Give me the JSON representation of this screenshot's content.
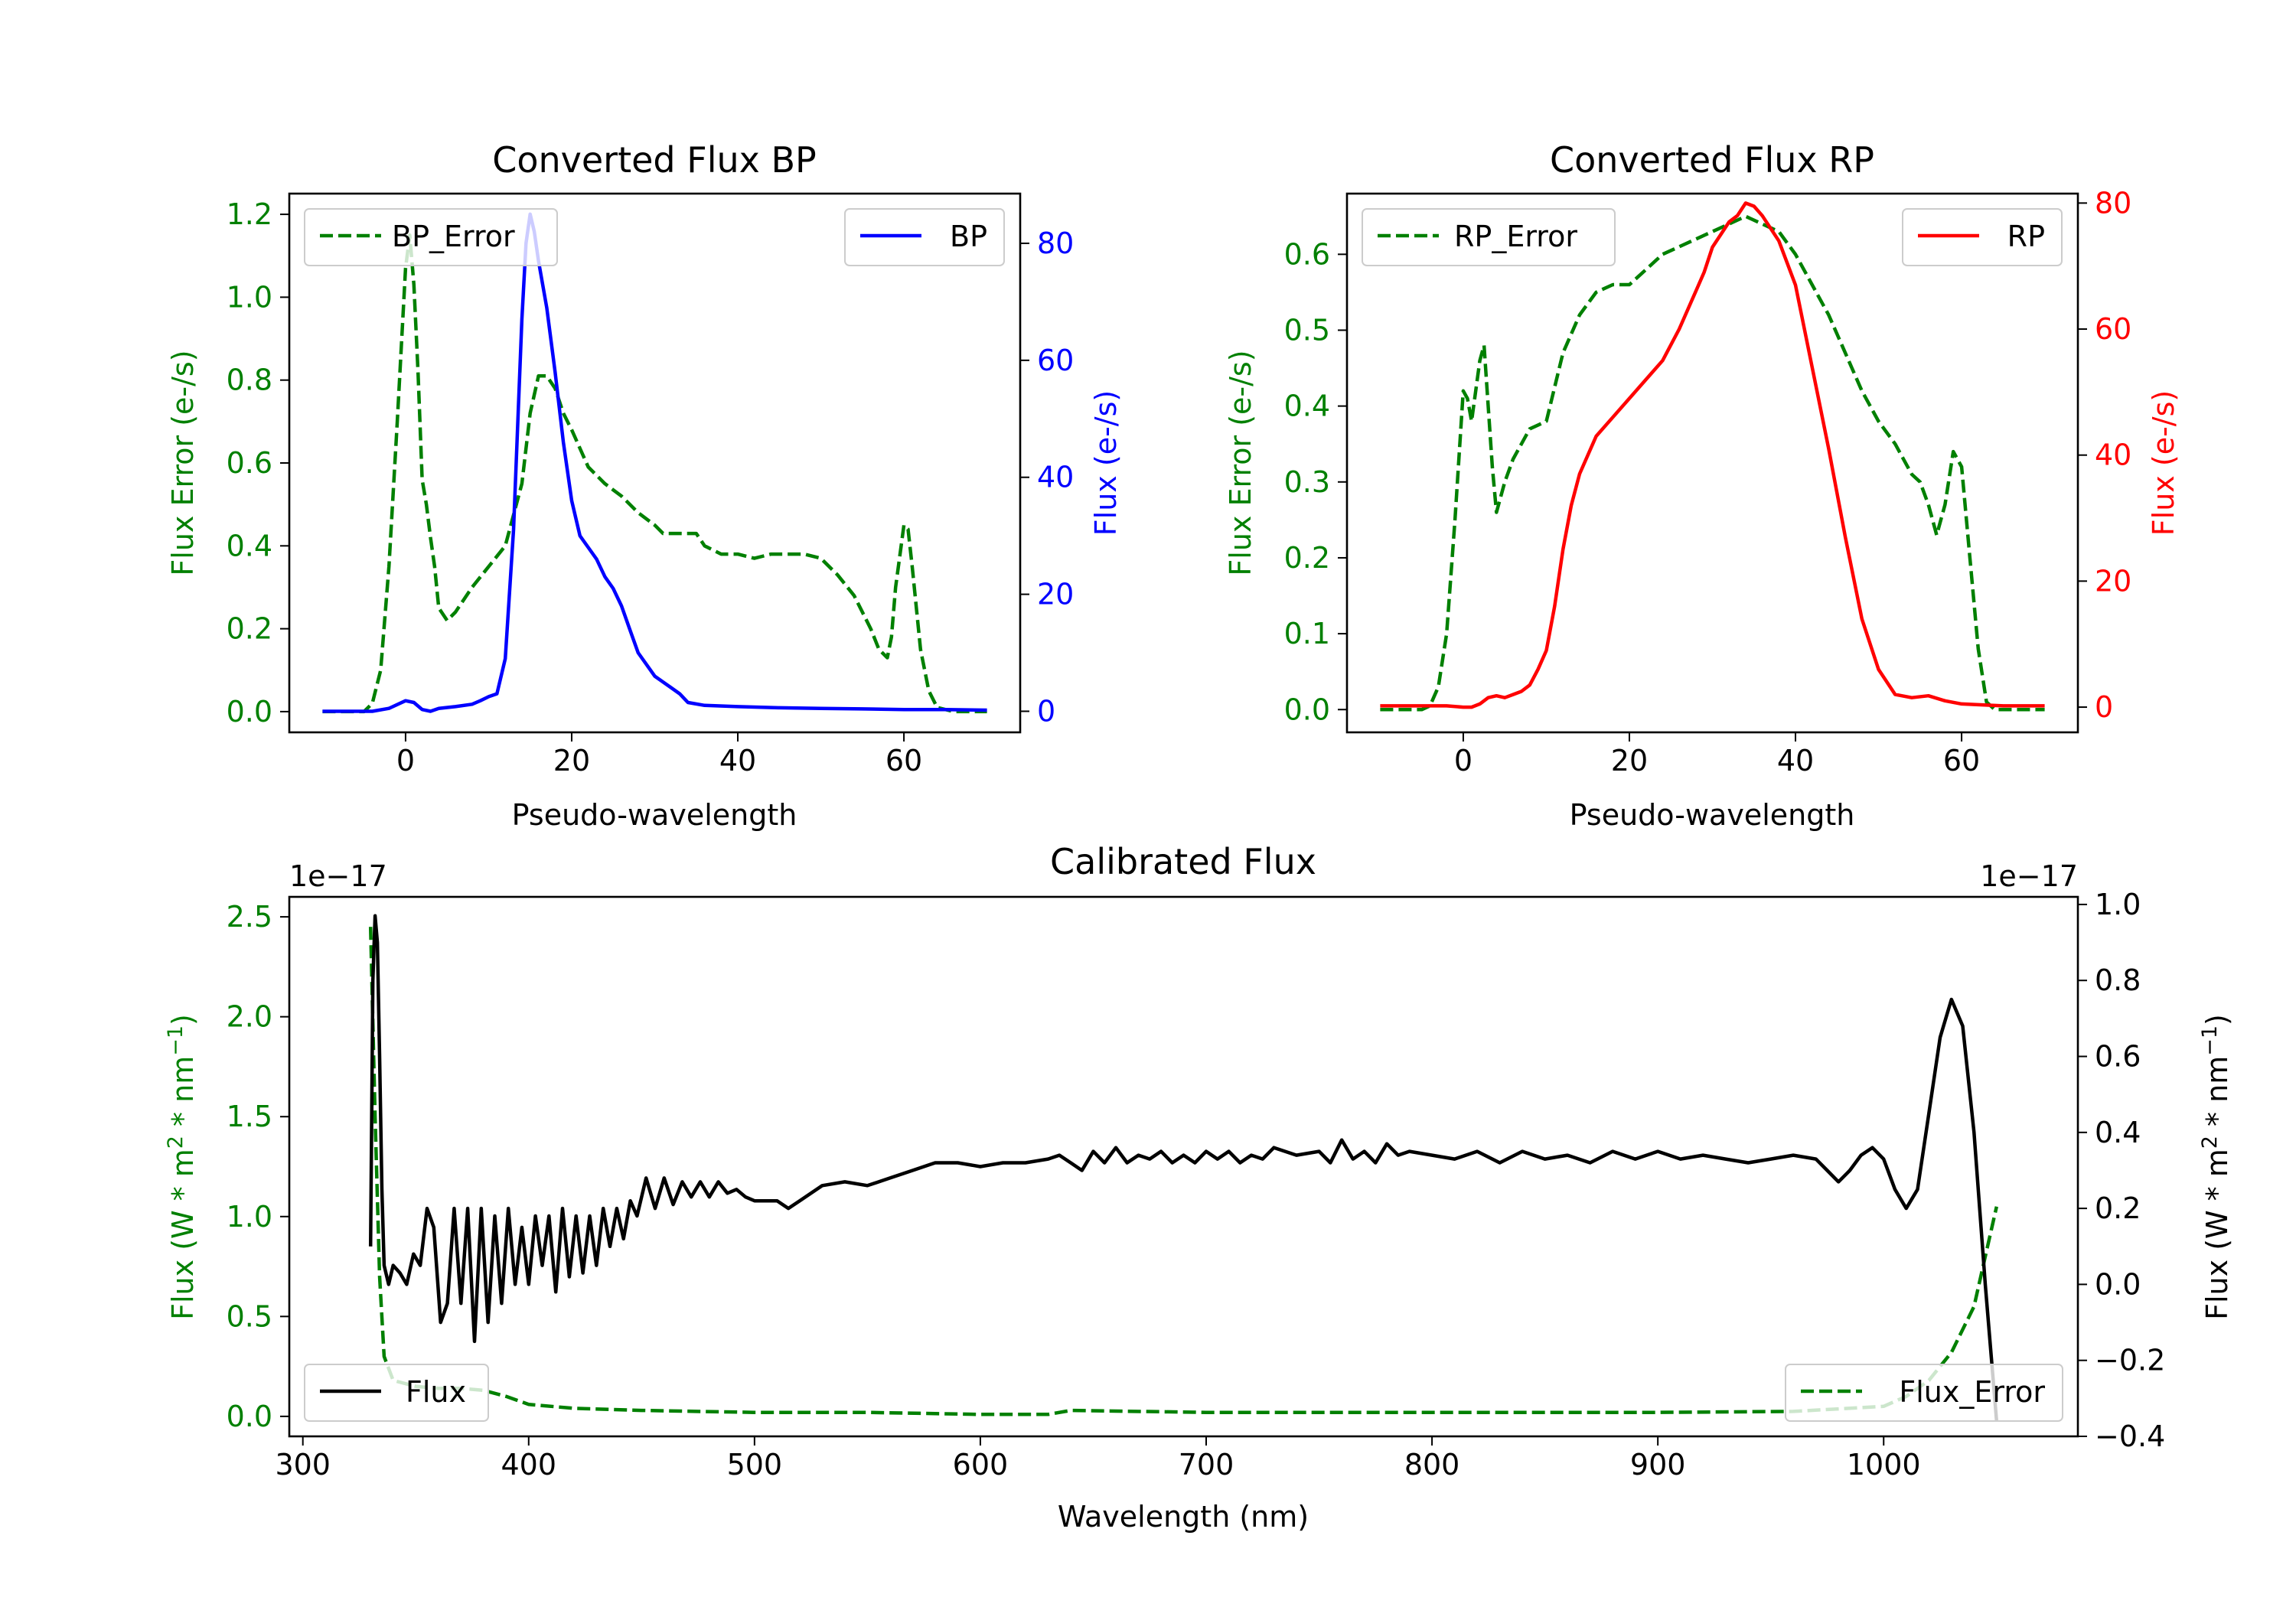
{
  "chart_data": [
    {
      "type": "line",
      "id": "bp",
      "title": "Converted Flux BP",
      "xlabel": "Pseudo-wavelength",
      "ylabel_left": "Flux Error (e-/s)",
      "ylabel_right": "Flux (e-/s)",
      "xlim": [
        -14,
        74
      ],
      "ylim_left": [
        -0.05,
        1.25
      ],
      "ylim_right": [
        -3.6,
        88.5
      ],
      "xticks": [
        0,
        20,
        40,
        60
      ],
      "yticks_left": [
        0.0,
        0.2,
        0.4,
        0.6,
        0.8,
        1.0,
        1.2
      ],
      "yticks_left_labels": [
        "0.0",
        "0.2",
        "0.4",
        "0.6",
        "0.8",
        "1.0",
        "1.2"
      ],
      "yticks_right": [
        0,
        20,
        40,
        60,
        80
      ],
      "yticks_right_labels": [
        "0",
        "20",
        "40",
        "60",
        "80"
      ],
      "left_color": "#008000",
      "right_color": "#0000ff",
      "series": [
        {
          "name": "BP_Error",
          "axis": "left",
          "style": "dashed",
          "color": "#008000",
          "legend": "upper left",
          "x": [
            -10,
            -5,
            -4,
            -3,
            -2,
            -1,
            0,
            0.5,
            1,
            1.5,
            2,
            2.5,
            3,
            3.5,
            4,
            5,
            6,
            8,
            10,
            12,
            14,
            15,
            16,
            17,
            18,
            19,
            20,
            22,
            24,
            26,
            28,
            30,
            31,
            32,
            33,
            34,
            35,
            36,
            38,
            40,
            42,
            44,
            46,
            48,
            50,
            52,
            54,
            56,
            57,
            58,
            58.5,
            59,
            60,
            60.5,
            61,
            62,
            63,
            64,
            66,
            70
          ],
          "y": [
            0,
            0,
            0.02,
            0.1,
            0.35,
            0.7,
            1.07,
            1.15,
            1.03,
            0.82,
            0.56,
            0.5,
            0.42,
            0.35,
            0.25,
            0.22,
            0.24,
            0.3,
            0.35,
            0.4,
            0.55,
            0.72,
            0.81,
            0.81,
            0.78,
            0.72,
            0.68,
            0.59,
            0.55,
            0.52,
            0.48,
            0.45,
            0.43,
            0.43,
            0.43,
            0.43,
            0.43,
            0.4,
            0.38,
            0.38,
            0.37,
            0.38,
            0.38,
            0.38,
            0.37,
            0.33,
            0.28,
            0.2,
            0.15,
            0.13,
            0.18,
            0.3,
            0.45,
            0.44,
            0.35,
            0.15,
            0.05,
            0.01,
            0,
            0
          ]
        },
        {
          "name": "BP",
          "axis": "right",
          "style": "solid",
          "color": "#0000ff",
          "legend": "upper right",
          "x": [
            -10,
            -6,
            -4,
            -2,
            0,
            1,
            2,
            3,
            4,
            6,
            8,
            9,
            10,
            11,
            12,
            13,
            14,
            14.5,
            15,
            15.5,
            16,
            16.5,
            17,
            18,
            19,
            20,
            21,
            22,
            23,
            24,
            25,
            26,
            27,
            28,
            30,
            32,
            33,
            34,
            36,
            40,
            45,
            50,
            55,
            60,
            65,
            70
          ],
          "y": [
            0,
            0,
            0,
            0.5,
            1.8,
            1.5,
            0.3,
            0,
            0.5,
            0.8,
            1.2,
            1.8,
            2.5,
            3,
            9,
            31,
            67,
            80,
            85,
            82,
            77,
            73,
            69,
            58,
            46,
            36,
            30,
            28,
            26,
            23,
            21,
            18,
            14,
            10,
            6,
            4,
            3,
            1.5,
            1,
            0.8,
            0.6,
            0.5,
            0.4,
            0.3,
            0.3,
            0.2
          ]
        }
      ]
    },
    {
      "type": "line",
      "id": "rp",
      "title": "Converted Flux RP",
      "xlabel": "Pseudo-wavelength",
      "ylabel_left": "Flux Error (e-/s)",
      "ylabel_right": "Flux (e-/s)",
      "xlim": [
        -14,
        74
      ],
      "ylim_left": [
        -0.03,
        0.68
      ],
      "ylim_right": [
        -4.0,
        81.5
      ],
      "xticks": [
        0,
        20,
        40,
        60
      ],
      "yticks_left": [
        0.0,
        0.1,
        0.2,
        0.3,
        0.4,
        0.5,
        0.6
      ],
      "yticks_left_labels": [
        "0.0",
        "0.1",
        "0.2",
        "0.3",
        "0.4",
        "0.5",
        "0.6"
      ],
      "yticks_right": [
        0,
        20,
        40,
        60,
        80
      ],
      "yticks_right_labels": [
        "0",
        "20",
        "40",
        "60",
        "80"
      ],
      "left_color": "#008000",
      "right_color": "#ff0000",
      "series": [
        {
          "name": "RP_Error",
          "axis": "left",
          "style": "dashed",
          "color": "#008000",
          "legend": "upper left",
          "x": [
            -10,
            -5,
            -4,
            -3,
            -2,
            -1,
            0,
            0.5,
            1,
            1.5,
            2,
            2.5,
            3,
            3.5,
            4,
            5,
            6,
            8,
            10,
            12,
            14,
            16,
            18,
            20,
            22,
            24,
            26,
            28,
            30,
            32,
            34,
            36,
            38,
            40,
            42,
            44,
            46,
            48,
            50,
            52,
            54,
            55,
            56,
            57,
            58,
            59,
            60,
            61,
            62,
            63,
            64,
            66,
            70
          ],
          "y": [
            0,
            0,
            0.005,
            0.03,
            0.1,
            0.25,
            0.42,
            0.41,
            0.38,
            0.42,
            0.46,
            0.48,
            0.4,
            0.32,
            0.26,
            0.3,
            0.33,
            0.37,
            0.38,
            0.47,
            0.52,
            0.55,
            0.56,
            0.56,
            0.58,
            0.6,
            0.61,
            0.62,
            0.63,
            0.64,
            0.65,
            0.64,
            0.63,
            0.6,
            0.56,
            0.52,
            0.47,
            0.42,
            0.38,
            0.35,
            0.31,
            0.3,
            0.27,
            0.23,
            0.27,
            0.34,
            0.32,
            0.2,
            0.08,
            0.01,
            0,
            0,
            0
          ]
        },
        {
          "name": "RP",
          "axis": "right",
          "style": "solid",
          "color": "#ff0000",
          "legend": "upper right",
          "x": [
            -10,
            -6,
            -2,
            0,
            1,
            2,
            3,
            4,
            5,
            6,
            7,
            8,
            9,
            10,
            11,
            12,
            13,
            14,
            16,
            18,
            20,
            22,
            24,
            26,
            28,
            29,
            30,
            31,
            32,
            33,
            34,
            35,
            36,
            38,
            40,
            42,
            44,
            46,
            48,
            50,
            52,
            54,
            56,
            58,
            60,
            65,
            70
          ],
          "y": [
            0.2,
            0.2,
            0.2,
            0,
            0,
            0.5,
            1.5,
            1.8,
            1.5,
            2,
            2.5,
            3.5,
            6,
            9,
            16,
            25,
            32,
            37,
            43,
            46,
            49,
            52,
            55,
            60,
            66,
            69,
            73,
            75,
            77,
            78,
            80,
            79.5,
            78,
            74,
            67,
            54,
            41,
            27,
            14,
            6,
            2,
            1.5,
            1.8,
            1.0,
            0.5,
            0.2,
            0.2
          ]
        }
      ]
    },
    {
      "type": "line",
      "id": "calibrated",
      "title": "Calibrated Flux",
      "xlabel": "Wavelength (nm)",
      "ylabel_left": "Flux (W * m",
      "ylabel_right": "Flux (W * m",
      "ylabel_unit_mid": " * nm",
      "ylabel_sup_left": "2",
      "ylabel_sup_right": "−1",
      "offset_left": "1e−17",
      "offset_right": "1e−17",
      "xlim": [
        294,
        1086
      ],
      "ylim_left": [
        -0.1,
        2.6
      ],
      "ylim_right": [
        -0.4,
        1.02
      ],
      "xticks": [
        300,
        400,
        500,
        600,
        700,
        800,
        900,
        1000
      ],
      "yticks_left": [
        0.0,
        0.5,
        1.0,
        1.5,
        2.0,
        2.5
      ],
      "yticks_left_labels": [
        "0.0",
        "0.5",
        "1.0",
        "1.5",
        "2.0",
        "2.5"
      ],
      "yticks_right": [
        -0.4,
        -0.2,
        0.0,
        0.2,
        0.4,
        0.6,
        0.8,
        1.0
      ],
      "yticks_right_labels": [
        "−0.4",
        "−0.2",
        "0.0",
        "0.2",
        "0.4",
        "0.6",
        "0.8",
        "1.0"
      ],
      "left_color": "#008000",
      "right_color": "#000000",
      "series": [
        {
          "name": "Flux_Error",
          "axis": "left",
          "style": "dashed",
          "color": "#008000",
          "legend": "lower right",
          "x": [
            330,
            332,
            334,
            336,
            340,
            350,
            360,
            370,
            380,
            390,
            400,
            420,
            450,
            500,
            550,
            600,
            630,
            640,
            700,
            800,
            900,
            960,
            1000,
            1010,
            1020,
            1030,
            1040,
            1045,
            1050
          ],
          "y": [
            2.45,
            1.5,
            0.7,
            0.3,
            0.18,
            0.15,
            0.14,
            0.14,
            0.13,
            0.1,
            0.06,
            0.04,
            0.03,
            0.02,
            0.02,
            0.01,
            0.01,
            0.03,
            0.02,
            0.02,
            0.02,
            0.025,
            0.05,
            0.1,
            0.18,
            0.32,
            0.55,
            0.8,
            1.05
          ]
        },
        {
          "name": "Flux",
          "axis": "right",
          "style": "solid",
          "color": "#000000",
          "legend": "lower left",
          "x": [
            330,
            331,
            332,
            333,
            334,
            335,
            336,
            338,
            340,
            343,
            346,
            349,
            352,
            355,
            358,
            361,
            364,
            367,
            370,
            373,
            376,
            379,
            382,
            385,
            388,
            391,
            394,
            397,
            400,
            403,
            406,
            409,
            412,
            415,
            418,
            421,
            424,
            427,
            430,
            433,
            436,
            439,
            442,
            445,
            448,
            452,
            456,
            460,
            464,
            468,
            472,
            476,
            480,
            484,
            488,
            492,
            496,
            500,
            505,
            510,
            515,
            520,
            530,
            540,
            550,
            560,
            570,
            580,
            590,
            600,
            610,
            620,
            630,
            635,
            640,
            645,
            650,
            655,
            660,
            665,
            670,
            675,
            680,
            685,
            690,
            695,
            700,
            705,
            710,
            715,
            720,
            725,
            730,
            740,
            750,
            755,
            760,
            765,
            770,
            775,
            780,
            785,
            790,
            800,
            810,
            820,
            830,
            840,
            850,
            860,
            870,
            880,
            890,
            900,
            910,
            920,
            930,
            940,
            950,
            960,
            970,
            975,
            980,
            985,
            990,
            995,
            1000,
            1005,
            1010,
            1015,
            1020,
            1025,
            1030,
            1035,
            1040,
            1045,
            1050
          ],
          "y": [
            0.1,
            0.8,
            0.97,
            0.9,
            0.6,
            0.25,
            0.05,
            0,
            0.05,
            0.03,
            0.0,
            0.08,
            0.05,
            0.2,
            0.15,
            -0.1,
            -0.05,
            0.2,
            -0.05,
            0.2,
            -0.15,
            0.2,
            -0.1,
            0.18,
            -0.05,
            0.2,
            0.0,
            0.15,
            0.0,
            0.18,
            0.05,
            0.18,
            -0.02,
            0.2,
            0.02,
            0.18,
            0.03,
            0.18,
            0.05,
            0.2,
            0.1,
            0.2,
            0.12,
            0.22,
            0.18,
            0.28,
            0.2,
            0.28,
            0.21,
            0.27,
            0.23,
            0.27,
            0.23,
            0.27,
            0.24,
            0.25,
            0.23,
            0.22,
            0.22,
            0.22,
            0.2,
            0.22,
            0.26,
            0.27,
            0.26,
            0.28,
            0.3,
            0.32,
            0.32,
            0.31,
            0.32,
            0.32,
            0.33,
            0.34,
            0.32,
            0.3,
            0.35,
            0.32,
            0.36,
            0.32,
            0.34,
            0.33,
            0.35,
            0.32,
            0.34,
            0.32,
            0.35,
            0.33,
            0.35,
            0.32,
            0.34,
            0.33,
            0.36,
            0.34,
            0.35,
            0.32,
            0.38,
            0.33,
            0.35,
            0.32,
            0.37,
            0.34,
            0.35,
            0.34,
            0.33,
            0.35,
            0.32,
            0.35,
            0.33,
            0.34,
            0.32,
            0.35,
            0.33,
            0.35,
            0.33,
            0.34,
            0.33,
            0.32,
            0.33,
            0.34,
            0.33,
            0.3,
            0.27,
            0.3,
            0.34,
            0.36,
            0.33,
            0.25,
            0.2,
            0.25,
            0.45,
            0.65,
            0.75,
            0.68,
            0.4,
            0.0,
            -0.36
          ]
        }
      ]
    }
  ]
}
